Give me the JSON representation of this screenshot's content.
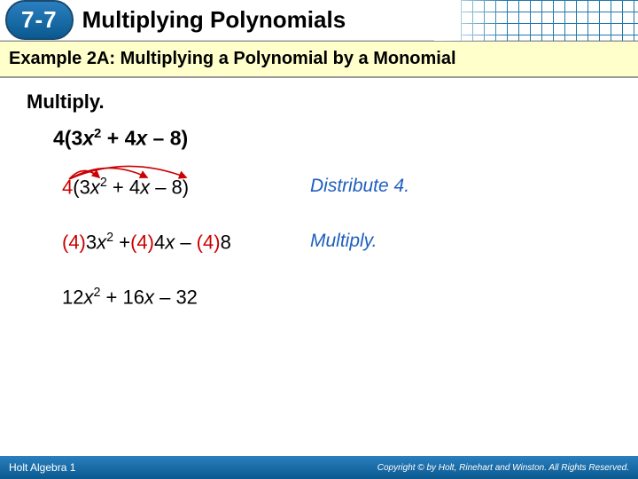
{
  "header": {
    "lesson_number": "7-7",
    "lesson_title": "Multiplying Polynomials"
  },
  "example_bar": "Example 2A: Multiplying a Polynomial by a Monomial",
  "instruction": "Multiply.",
  "problem": {
    "lead": "4(3",
    "var1": "x",
    "exp1": "2",
    "mid1": " + 4",
    "var2": "x",
    "end": " – 8)"
  },
  "steps": [
    {
      "expr": {
        "parts": [
          {
            "t": "4",
            "r": true
          },
          {
            "t": "(3",
            "r": false
          },
          {
            "t": "x",
            "r": false,
            "i": true
          },
          {
            "t": "2",
            "sup": true
          },
          {
            "t": " + 4",
            "r": false
          },
          {
            "t": "x",
            "r": false,
            "i": true
          },
          {
            "t": " – 8)",
            "r": false
          }
        ]
      },
      "note": "Distribute 4.",
      "arcs": true
    },
    {
      "expr": {
        "parts": [
          {
            "t": "(4)",
            "r": true
          },
          {
            "t": "3",
            "r": false
          },
          {
            "t": "x",
            "r": false,
            "i": true
          },
          {
            "t": "2",
            "sup": true
          },
          {
            "t": " +",
            "r": false
          },
          {
            "t": "(4)",
            "r": true
          },
          {
            "t": "4",
            "r": false
          },
          {
            "t": "x",
            "r": false,
            "i": true
          },
          {
            "t": " – ",
            "r": false
          },
          {
            "t": "(4)",
            "r": true
          },
          {
            "t": "8",
            "r": false
          }
        ]
      },
      "note": "Multiply."
    },
    {
      "expr": {
        "parts": [
          {
            "t": "12",
            "r": false
          },
          {
            "t": "x",
            "r": false,
            "i": true
          },
          {
            "t": "2",
            "sup": true
          },
          {
            "t": " + 16",
            "r": false
          },
          {
            "t": "x",
            "r": false,
            "i": true
          },
          {
            "t": " – 32",
            "r": false
          }
        ]
      },
      "note": ""
    }
  ],
  "footer": {
    "left": "Holt Algebra 1",
    "right": "Copyright © by Holt, Rinehart and Winston. All Rights Reserved."
  },
  "colors": {
    "red": "#cc0000",
    "blue_note": "#1f5fbf",
    "header_blue": "#0a5a90",
    "example_bg": "#ffffcc"
  }
}
